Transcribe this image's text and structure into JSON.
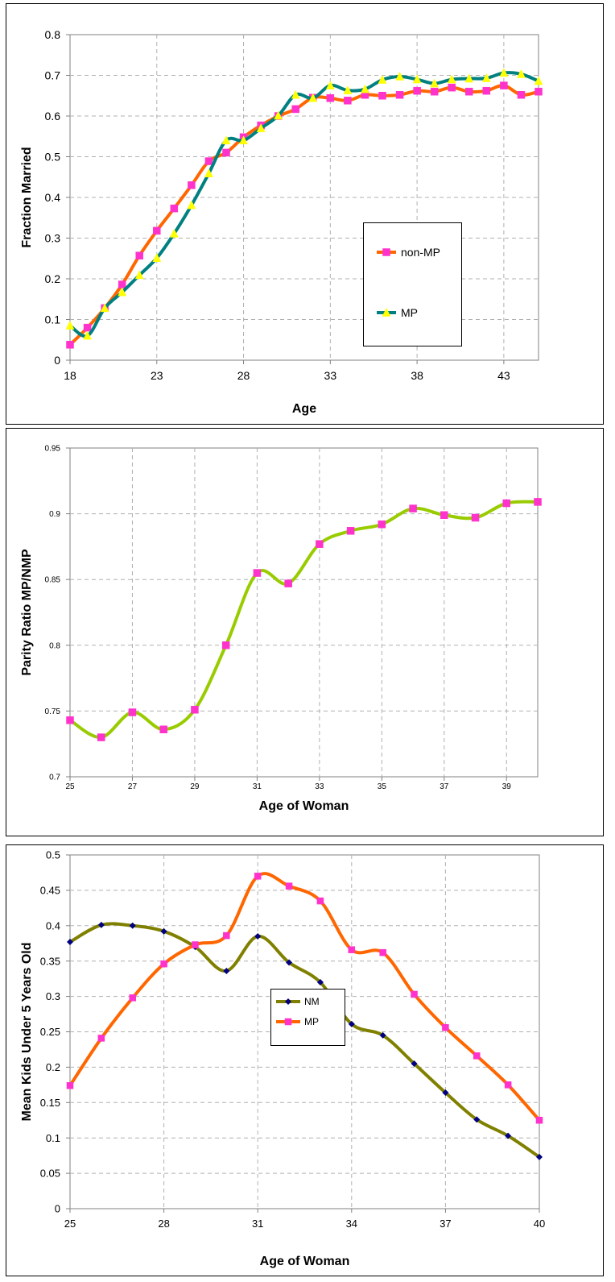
{
  "chart_data": [
    {
      "type": "line",
      "xlabel": "Age",
      "ylabel": "Fraction Married",
      "xlim": [
        18,
        45
      ],
      "ylim": [
        0,
        0.8
      ],
      "xticks": [
        18,
        23,
        28,
        33,
        38,
        43
      ],
      "xtick_labels": [
        "18",
        "23",
        "28",
        "33",
        "38",
        "43"
      ],
      "yticks": [
        0,
        0.1,
        0.2,
        0.3,
        0.4,
        0.5,
        0.6,
        0.7,
        0.8
      ],
      "ytick_labels": [
        "0",
        "0.1",
        "0.2",
        "0.3",
        "0.4",
        "0.5",
        "0.6",
        "0.7",
        "0.8"
      ],
      "grid": true,
      "legend_position": "right",
      "x": [
        18,
        19,
        20,
        21,
        22,
        23,
        24,
        25,
        26,
        27,
        28,
        29,
        30,
        31,
        32,
        33,
        34,
        35,
        36,
        37,
        38,
        39,
        40,
        41,
        42,
        43,
        44,
        45
      ],
      "series": [
        {
          "name": "non-MP",
          "color": "#ff6600",
          "marker": "square",
          "marker_color": "#ff33cc",
          "values": [
            0.038,
            0.08,
            0.128,
            0.186,
            0.257,
            0.318,
            0.373,
            0.43,
            0.489,
            0.51,
            0.548,
            0.577,
            0.6,
            0.617,
            0.645,
            0.644,
            0.638,
            0.652,
            0.65,
            0.652,
            0.662,
            0.66,
            0.67,
            0.66,
            0.662,
            0.675,
            0.652,
            0.66
          ]
        },
        {
          "name": "MP",
          "color": "#008080",
          "marker": "triangle",
          "marker_color": "#ffff00",
          "values": [
            0.085,
            0.06,
            0.128,
            0.167,
            0.209,
            0.251,
            0.311,
            0.381,
            0.459,
            0.54,
            0.54,
            0.57,
            0.601,
            0.652,
            0.644,
            0.675,
            0.663,
            0.666,
            0.689,
            0.697,
            0.69,
            0.68,
            0.69,
            0.692,
            0.693,
            0.706,
            0.703,
            0.686
          ]
        }
      ]
    },
    {
      "type": "line",
      "xlabel": "Age of Woman",
      "ylabel": "Parity Ratio MP/NMP",
      "xlim": [
        25,
        40
      ],
      "ylim": [
        0.7,
        0.95
      ],
      "xticks": [
        25,
        27,
        29,
        31,
        33,
        35,
        37,
        39
      ],
      "xtick_labels": [
        "25",
        "27",
        "29",
        "31",
        "33",
        "35",
        "37",
        "39"
      ],
      "yticks": [
        0.7,
        0.75,
        0.8,
        0.85,
        0.9,
        0.95
      ],
      "ytick_labels": [
        "0.7",
        "0.75",
        "0.8",
        "0.85",
        "0.9",
        "0.95"
      ],
      "grid": true,
      "x": [
        25,
        26,
        27,
        28,
        29,
        30,
        31,
        32,
        33,
        34,
        35,
        36,
        37,
        38,
        39,
        40
      ],
      "series": [
        {
          "color": "#99cc00",
          "marker": "square",
          "marker_color": "#ff33cc",
          "values": [
            0.743,
            0.73,
            0.749,
            0.736,
            0.751,
            0.8,
            0.855,
            0.847,
            0.877,
            0.887,
            0.892,
            0.904,
            0.899,
            0.897,
            0.908,
            0.909
          ]
        }
      ]
    },
    {
      "type": "line",
      "xlabel": "Age of Woman",
      "ylabel": "Mean Kids Under 5 Years Old",
      "xlim": [
        25,
        40
      ],
      "ylim": [
        0,
        0.5
      ],
      "xticks": [
        25,
        28,
        31,
        34,
        37,
        40
      ],
      "xtick_labels": [
        "25",
        "28",
        "31",
        "34",
        "37",
        "40"
      ],
      "yticks": [
        0,
        0.05,
        0.1,
        0.15,
        0.2,
        0.25,
        0.3,
        0.35,
        0.4,
        0.45,
        0.5
      ],
      "ytick_labels": [
        "0",
        "0.05",
        "0.1",
        "0.15",
        "0.2",
        "0.25",
        "0.3",
        "0.35",
        "0.4",
        "0.45",
        "0.5"
      ],
      "grid": true,
      "legend_position": "bottom-center",
      "x": [
        25,
        26,
        27,
        28,
        29,
        30,
        31,
        32,
        33,
        34,
        35,
        36,
        37,
        38,
        39,
        40
      ],
      "series": [
        {
          "name": "NM",
          "color": "#808000",
          "marker": "diamond",
          "marker_color": "#000080",
          "values": [
            0.377,
            0.401,
            0.4,
            0.392,
            0.37,
            0.336,
            0.385,
            0.348,
            0.32,
            0.261,
            0.245,
            0.205,
            0.164,
            0.126,
            0.103,
            0.073
          ]
        },
        {
          "name": "MP",
          "color": "#ff6600",
          "marker": "square",
          "marker_color": "#ff33cc",
          "values": [
            0.174,
            0.241,
            0.298,
            0.346,
            0.373,
            0.386,
            0.47,
            0.456,
            0.435,
            0.366,
            0.362,
            0.303,
            0.256,
            0.216,
            0.175,
            0.125
          ]
        }
      ]
    }
  ]
}
